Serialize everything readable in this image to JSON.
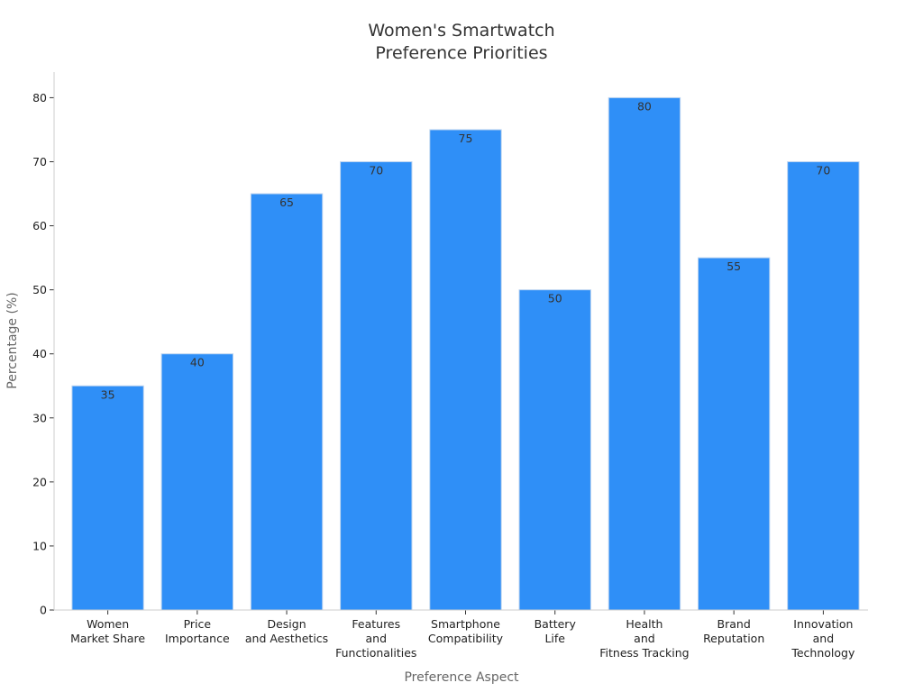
{
  "chart_data": {
    "type": "bar",
    "title": [
      "Women's Smartwatch",
      "Preference Priorities"
    ],
    "xlabel": "Preference Aspect",
    "ylabel": "Percentage (%)",
    "categories": [
      [
        "Women",
        "Market Share"
      ],
      [
        "Price",
        "Importance"
      ],
      [
        "Design",
        "and Aesthetics"
      ],
      [
        "Features",
        "and",
        "Functionalities"
      ],
      [
        "Smartphone",
        "Compatibility"
      ],
      [
        "Battery",
        "Life"
      ],
      [
        "Health",
        "and",
        "Fitness Tracking"
      ],
      [
        "Brand",
        "Reputation"
      ],
      [
        "Innovation",
        "and",
        "Technology"
      ]
    ],
    "values": [
      35,
      40,
      65,
      70,
      75,
      50,
      80,
      55,
      70
    ],
    "ylim": [
      0,
      84
    ],
    "yticks": [
      0,
      10,
      20,
      30,
      40,
      50,
      60,
      70,
      80
    ],
    "grid": false,
    "colors": {
      "bar": "#2f8ff7",
      "bar_edge": "#bcd4f0",
      "axis": "#cccccc"
    }
  }
}
